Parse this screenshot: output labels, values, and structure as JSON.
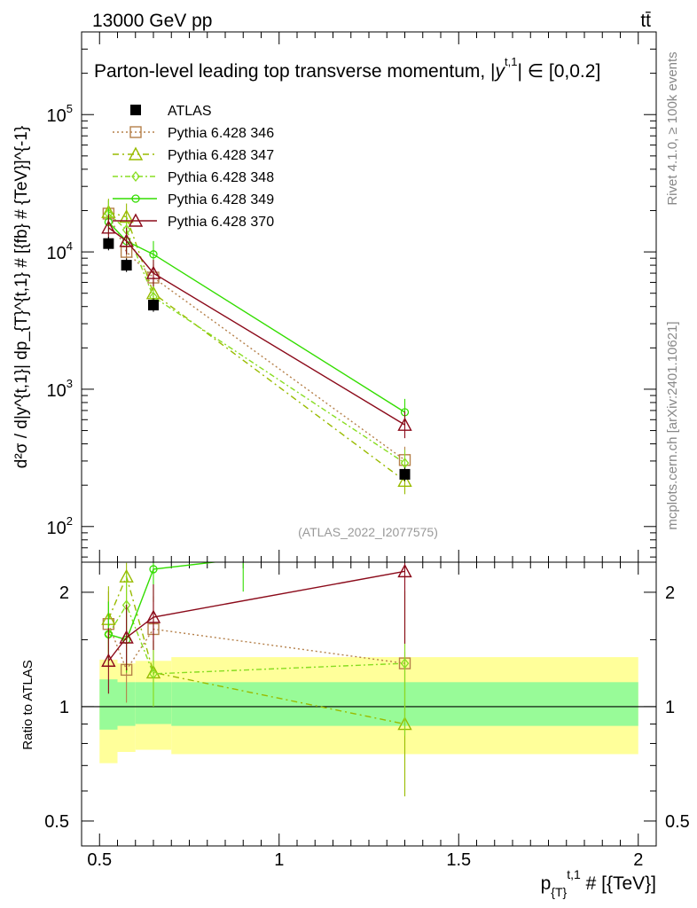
{
  "header": {
    "energy_label": "13000 GeV pp",
    "process_label": "tt̄",
    "analysis_id": "(ATLAS_2022_I2077575)",
    "side_label_top": "Rivet 4.1.0, ≥ 100k events",
    "side_label_bottom": "mcplots.cern.ch [arXiv:2401.10621]"
  },
  "chart_data": [
    {
      "type": "line",
      "panel": "main",
      "title": "Parton-level leading top transverse momentum, |y^{t,1}|∈[0,0.2]",
      "title_main": "Parton-level leading top transverse momentum, |",
      "title_sym": "y",
      "title_sup": "t,1",
      "title_tail": "| ∈ [0,0.2]",
      "ylabel": "d²σ / d|y^{t,1}| dp_{T}^{t,1} # [{fb} # {TeV}]^{-1}",
      "yscale": "log",
      "ylim": [
        55,
        400000
      ],
      "xlim": [
        0.45,
        2.05
      ],
      "ytick_labels": [
        {
          "value": 100,
          "mant": "10",
          "exp": "2"
        },
        {
          "value": 1000,
          "mant": "10",
          "exp": "3"
        },
        {
          "value": 10000,
          "mant": "10",
          "exp": "4"
        },
        {
          "value": 100000,
          "mant": "10",
          "exp": "5"
        }
      ],
      "data": {
        "name": "ATLAS",
        "x": [
          0.525,
          0.575,
          0.65,
          1.35
        ],
        "y": [
          11500,
          8000,
          4100,
          240
        ]
      },
      "series": [
        {
          "name": "Pythia 6.428 346",
          "color": "#b5804a",
          "marker": "square",
          "dash": "2,3",
          "x": [
            0.525,
            0.575,
            0.65,
            1.35
          ],
          "y": [
            19000,
            10000,
            6500,
            305
          ]
        },
        {
          "name": "Pythia 6.428 347",
          "color": "#99bb00",
          "marker": "triangle",
          "dash": "7,4,2,4",
          "x": [
            0.525,
            0.575,
            0.65,
            1.35
          ],
          "y": [
            19500,
            18000,
            5000,
            215
          ]
        },
        {
          "name": "Pythia 6.428 348",
          "color": "#88dd22",
          "marker": "diamond",
          "dash": "6,3,2,3",
          "x": [
            0.525,
            0.575,
            0.65,
            1.35
          ],
          "y": [
            19000,
            14500,
            4700,
            290
          ]
        },
        {
          "name": "Pythia 6.428 349",
          "color": "#33dd00",
          "marker": "circle",
          "dash": "",
          "x": [
            0.525,
            0.575,
            0.65,
            1.35
          ],
          "y": [
            16500,
            12000,
            9600,
            680
          ]
        },
        {
          "name": "Pythia 6.428 370",
          "color": "#8b0a1a",
          "marker": "triangle",
          "dash": "",
          "x": [
            0.525,
            0.575,
            0.65,
            1.35
          ],
          "y": [
            15000,
            12000,
            7000,
            550
          ]
        }
      ]
    },
    {
      "type": "line",
      "panel": "ratio",
      "ylabel": "Ratio to ATLAS",
      "xlabel": "p_{T}^{t,1} # [{TeV}]",
      "xlabel_main": "p",
      "xlabel_sub": "{T}",
      "xlabel_sup": "t,1",
      "xlabel_tail": " # [{TeV}]",
      "yscale": "log",
      "ylim": [
        0.43,
        2.4
      ],
      "xlim": [
        0.45,
        2.05
      ],
      "ytick_labels": [
        {
          "value": 0.5,
          "label": "0.5"
        },
        {
          "value": 1,
          "label": "1"
        },
        {
          "value": 2,
          "label": "2"
        }
      ],
      "xtick_labels": [
        {
          "value": 0.5,
          "label": "0.5"
        },
        {
          "value": 1,
          "label": "1"
        },
        {
          "value": 1.5,
          "label": "1.5"
        },
        {
          "value": 2,
          "label": "2"
        }
      ],
      "uncertainty_bands": {
        "edges": [
          0.5,
          0.55,
          0.6,
          0.7,
          2.0
        ],
        "inner_low": [
          0.87,
          0.89,
          0.9,
          0.89
        ],
        "inner_high": [
          1.18,
          1.16,
          1.16,
          1.16
        ],
        "outer_low": [
          0.71,
          0.76,
          0.77,
          0.75
        ],
        "outer_high": [
          1.33,
          1.3,
          1.32,
          1.35
        ]
      },
      "series": [
        {
          "name": "Pythia 6.428 346",
          "x": [
            0.525,
            0.575,
            0.65,
            1.35
          ],
          "y": [
            1.65,
            1.25,
            1.6,
            1.3
          ]
        },
        {
          "name": "Pythia 6.428 347",
          "x": [
            0.525,
            0.575,
            0.65,
            1.35
          ],
          "y": [
            1.7,
            2.2,
            1.23,
            0.9
          ]
        },
        {
          "name": "Pythia 6.428 348",
          "x": [
            0.525,
            0.575,
            0.65,
            1.35
          ],
          "y": [
            1.55,
            1.85,
            1.22,
            1.3
          ]
        },
        {
          "name": "Pythia 6.428 349",
          "x": [
            0.525,
            0.575,
            0.65,
            0.9
          ],
          "y": [
            1.55,
            1.5,
            2.3,
            2.45
          ]
        },
        {
          "name": "Pythia 6.428 370",
          "x": [
            0.525,
            0.575,
            0.65,
            1.35
          ],
          "y": [
            1.32,
            1.52,
            1.72,
            2.27
          ]
        }
      ]
    }
  ]
}
